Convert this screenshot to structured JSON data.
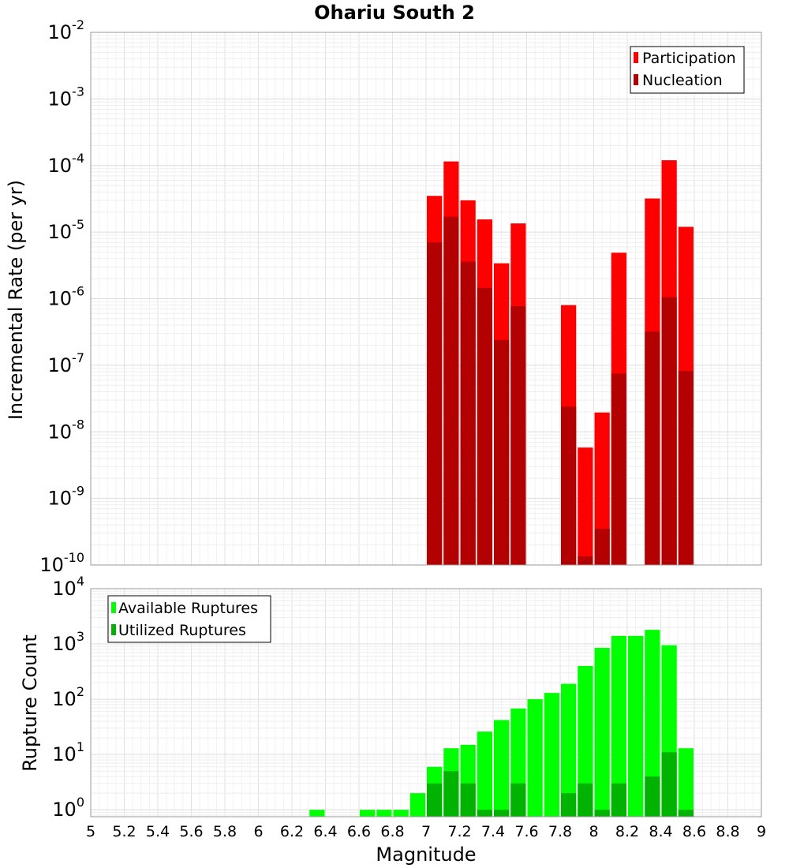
{
  "title": "Ohariu South 2",
  "chart_data": [
    {
      "type": "bar",
      "ylabel": "Incremental Rate (per yr)",
      "yscale": "log",
      "ylim": [
        1e-10,
        0.01
      ],
      "xlim": [
        5,
        9
      ],
      "y_ticks": [
        "10",
        "10",
        "10",
        "10",
        "10",
        "10",
        "10",
        "10",
        "10"
      ],
      "y_tick_exps": [
        "-10",
        "-9",
        "-8",
        "-7",
        "-6",
        "-5",
        "-4",
        "-3",
        "-2"
      ],
      "legend_position": "top-right",
      "colors": [
        "#ff0000",
        "#b30000"
      ],
      "series": [
        {
          "name": "Participation",
          "x": [
            7.05,
            7.15,
            7.25,
            7.35,
            7.45,
            7.55,
            7.85,
            7.95,
            8.05,
            8.15,
            8.35,
            8.45,
            8.55
          ],
          "values": [
            3.5e-05,
            0.000115,
            3e-05,
            1.55e-05,
            3.4e-06,
            1.35e-05,
            8e-07,
            5.8e-09,
            1.95e-08,
            4.9e-06,
            3.2e-05,
            0.00012,
            1.2e-05
          ]
        },
        {
          "name": "Nucleation",
          "x": [
            7.05,
            7.15,
            7.25,
            7.35,
            7.45,
            7.55,
            7.85,
            7.95,
            8.05,
            8.15,
            8.35,
            8.45,
            8.55
          ],
          "values": [
            7e-06,
            1.7e-05,
            3.6e-06,
            1.45e-06,
            2.4e-07,
            7.7e-07,
            2.4e-08,
            1.35e-10,
            3.5e-10,
            7.5e-08,
            3.2e-07,
            1.05e-06,
            8.2e-08
          ]
        }
      ]
    },
    {
      "type": "bar",
      "ylabel": "Rupture Count",
      "xlabel": "Magnitude",
      "yscale": "log",
      "ylim": [
        0.75,
        10000
      ],
      "xlim": [
        5,
        9
      ],
      "x_ticks": [
        "5",
        "5.2",
        "5.4",
        "5.6",
        "5.8",
        "6",
        "6.2",
        "6.4",
        "6.6",
        "6.8",
        "7",
        "7.2",
        "7.4",
        "7.6",
        "7.8",
        "8",
        "8.2",
        "8.4",
        "8.6",
        "8.8",
        "9"
      ],
      "y_ticks": [
        "10",
        "10",
        "10",
        "10",
        "10"
      ],
      "y_tick_exps": [
        "0",
        "1",
        "2",
        "3",
        "4"
      ],
      "legend_position": "top-left",
      "colors": [
        "#00ff00",
        "#00b300"
      ],
      "series": [
        {
          "name": "Available Ruptures",
          "x": [
            6.35,
            6.65,
            6.75,
            6.85,
            6.95,
            7.05,
            7.15,
            7.25,
            7.35,
            7.45,
            7.55,
            7.65,
            7.75,
            7.85,
            7.95,
            8.05,
            8.15,
            8.25,
            8.35,
            8.45,
            8.55
          ],
          "values": [
            1,
            1,
            1,
            1,
            2,
            6,
            13,
            15,
            26,
            42,
            68,
            100,
            130,
            190,
            400,
            850,
            1400,
            1400,
            1800,
            950,
            13
          ]
        },
        {
          "name": "Utilized Ruptures",
          "x": [
            7.05,
            7.15,
            7.25,
            7.35,
            7.45,
            7.55,
            7.85,
            7.95,
            8.05,
            8.15,
            8.35,
            8.45,
            8.55
          ],
          "values": [
            3,
            5,
            3,
            1,
            1,
            3,
            2,
            3,
            1,
            3,
            4,
            11,
            1
          ]
        }
      ]
    }
  ]
}
